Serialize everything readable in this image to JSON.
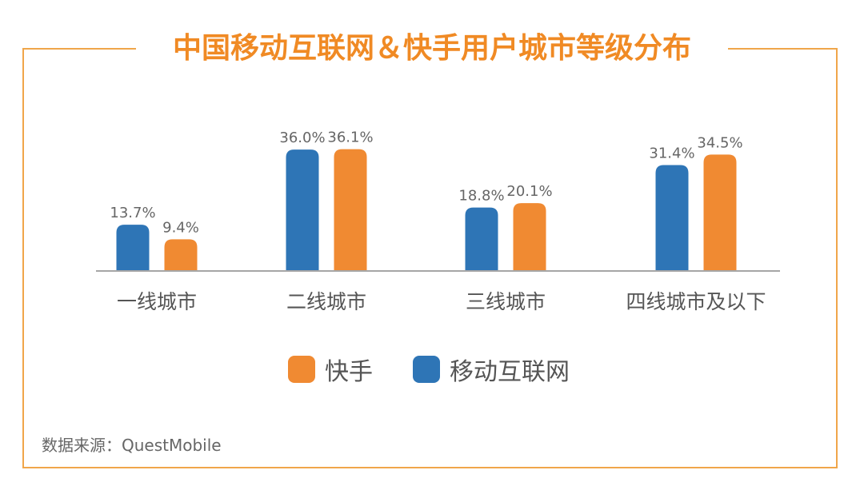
{
  "title": "中国移动互联网＆快手用户城市等级分布",
  "source": "数据来源：QuestMobile",
  "colors": {
    "frame": "#f0a64a",
    "title": "#f08a24",
    "mobile_internet": "#2e75b6",
    "kuaishou": "#f08a32"
  },
  "legend": [
    {
      "label": "快手",
      "color": "#f08a32"
    },
    {
      "label": "移动互联网",
      "color": "#2e75b6"
    }
  ],
  "chart_data": {
    "type": "bar",
    "categories": [
      "一线城市",
      "二线城市",
      "三线城市",
      "四线城市及以下"
    ],
    "series": [
      {
        "name": "移动互联网",
        "values": [
          13.7,
          36.0,
          18.8,
          31.4
        ],
        "labels": [
          "13.7%",
          "36.0%",
          "18.8%",
          "31.4%"
        ],
        "color": "#2e75b6"
      },
      {
        "name": "快手",
        "values": [
          9.4,
          36.1,
          20.1,
          34.5
        ],
        "labels": [
          "9.4%",
          "36.1%",
          "20.1%",
          "34.5%"
        ],
        "color": "#f08a32"
      }
    ],
    "ylim": [
      0,
      40
    ],
    "grid": false,
    "legend_position": "bottom",
    "xlabel": "",
    "ylabel": ""
  }
}
